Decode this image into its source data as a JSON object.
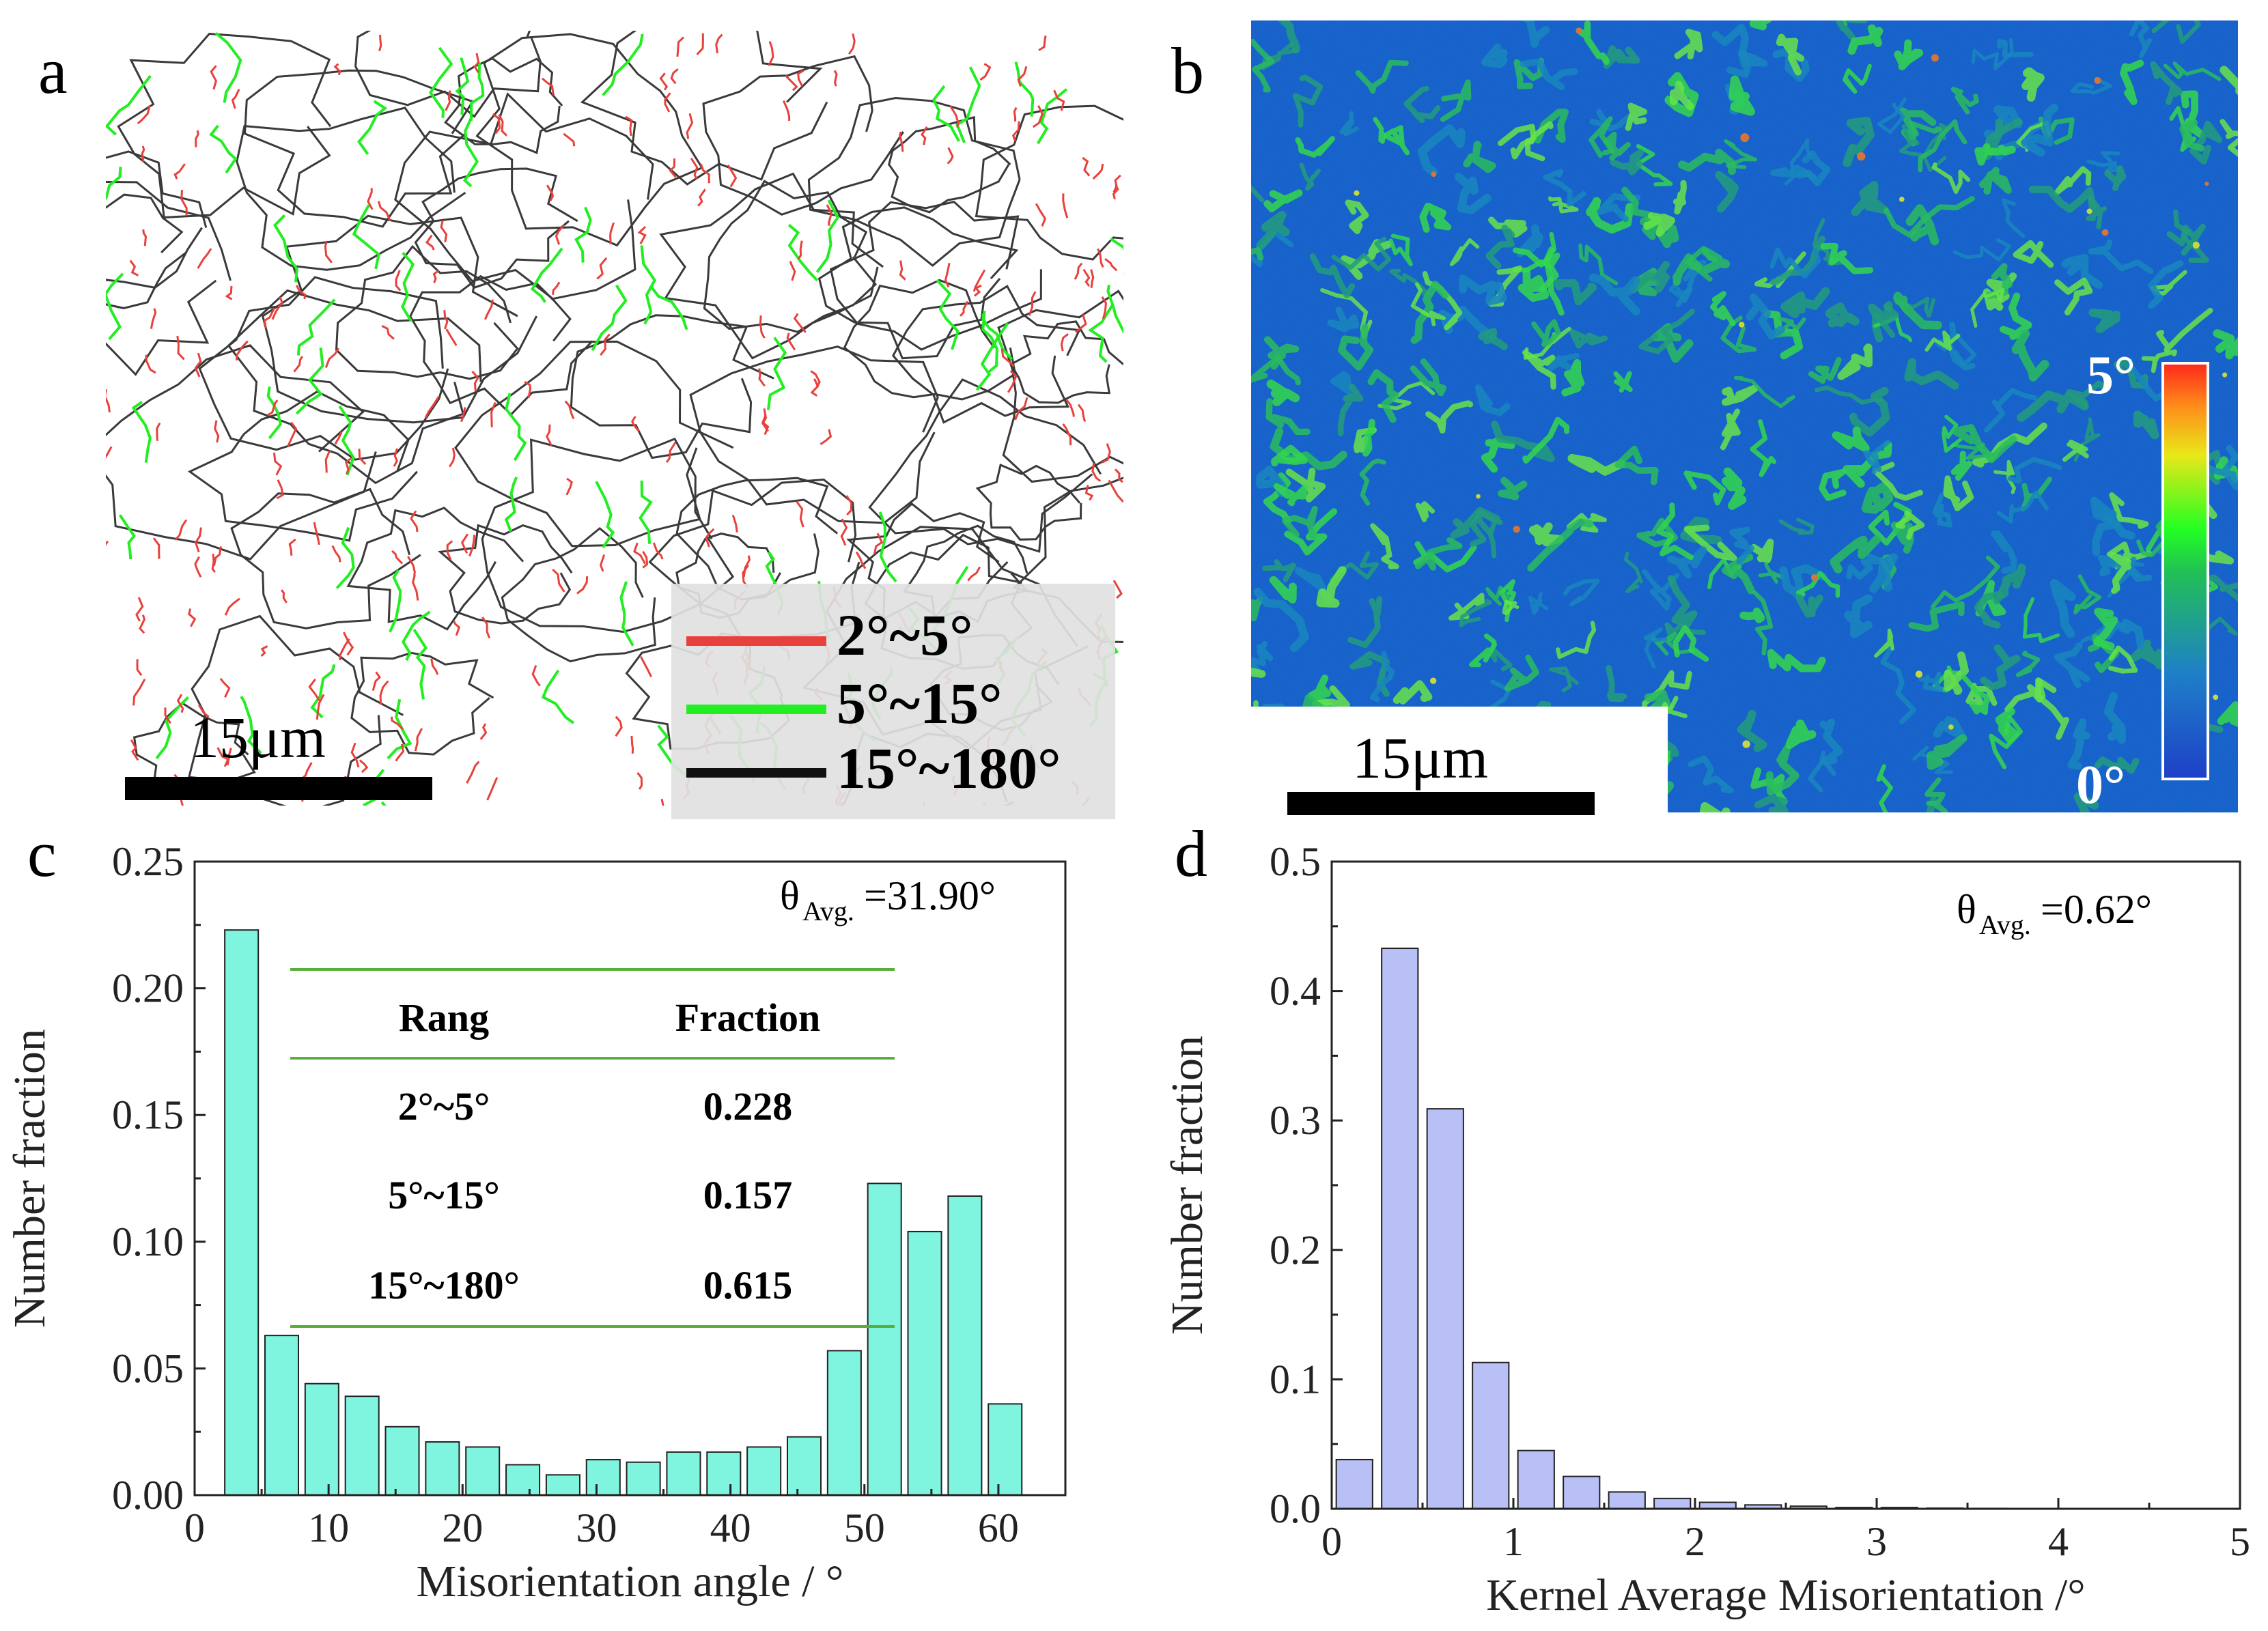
{
  "panels": {
    "a": {
      "letter": "a",
      "scalebar_label": "15μm",
      "legend": [
        {
          "label": "2°~5°",
          "color": "#e8413c"
        },
        {
          "label": "5°~15°",
          "color": "#22ee22"
        },
        {
          "label": "15°~180°",
          "color": "#111111"
        }
      ]
    },
    "b": {
      "letter": "b",
      "scalebar_label": "15μm",
      "colorbar": {
        "max_label": "5°",
        "min_label": "0°"
      }
    },
    "c": {
      "letter": "c",
      "annotation": "θ",
      "annotation_sub": "Avg.",
      "annotation_value": "=31.90°",
      "table": {
        "header": [
          "Rang",
          "Fraction"
        ],
        "rows": [
          [
            "2°~5°",
            "0.228"
          ],
          [
            "5°~15°",
            "0.157"
          ],
          [
            "15°~180°",
            "0.615"
          ]
        ]
      }
    },
    "d": {
      "letter": "d",
      "annotation": "θ",
      "annotation_sub": "Avg.",
      "annotation_value": "=0.62°"
    }
  },
  "chart_data": [
    {
      "id": "c",
      "type": "bar",
      "title": "",
      "xlabel": "Misorientation angle / °",
      "ylabel": "Number fraction",
      "xlim": [
        0,
        65
      ],
      "ylim": [
        0,
        0.25
      ],
      "xticks": [
        "0",
        "10",
        "20",
        "30",
        "40",
        "50",
        "60"
      ],
      "yticks": [
        "0.00",
        "0.05",
        "0.10",
        "0.15",
        "0.20",
        "0.25"
      ],
      "bar_width": 2.5,
      "color": "#7ff5e0",
      "x": [
        3.5,
        6.5,
        9.5,
        12.5,
        15.5,
        18.5,
        21.5,
        24.5,
        27.5,
        30.5,
        33.5,
        36.5,
        39.5,
        42.5,
        45.5,
        48.5,
        51.5,
        54.5,
        57.5,
        60.5
      ],
      "values": [
        0.223,
        0.063,
        0.044,
        0.039,
        0.027,
        0.021,
        0.019,
        0.012,
        0.008,
        0.014,
        0.013,
        0.017,
        0.017,
        0.019,
        0.023,
        0.057,
        0.123,
        0.104,
        0.118,
        0.036
      ]
    },
    {
      "id": "d",
      "type": "bar",
      "title": "",
      "xlabel": "Kernel Average Misorientation /°",
      "ylabel": "Number fraction",
      "xlim": [
        0,
        5
      ],
      "ylim": [
        0,
        0.5
      ],
      "xticks": [
        "0",
        "1",
        "2",
        "3",
        "4",
        "5"
      ],
      "yticks": [
        "0.0",
        "0.1",
        "0.2",
        "0.3",
        "0.4",
        "0.5"
      ],
      "bar_width": 0.2,
      "color": "#b8c0f5",
      "x": [
        0.125,
        0.375,
        0.625,
        0.875,
        1.125,
        1.375,
        1.625,
        1.875,
        2.125,
        2.375,
        2.625,
        2.875,
        3.125,
        3.375,
        3.625,
        3.875,
        4.125,
        4.375,
        4.625,
        4.875
      ],
      "values": [
        0.038,
        0.433,
        0.309,
        0.113,
        0.045,
        0.025,
        0.013,
        0.008,
        0.005,
        0.003,
        0.002,
        0.001,
        0.001,
        0.0005,
        0.0003,
        0.0002,
        0.0002,
        0.0002,
        0.0002,
        0.0002
      ]
    }
  ]
}
